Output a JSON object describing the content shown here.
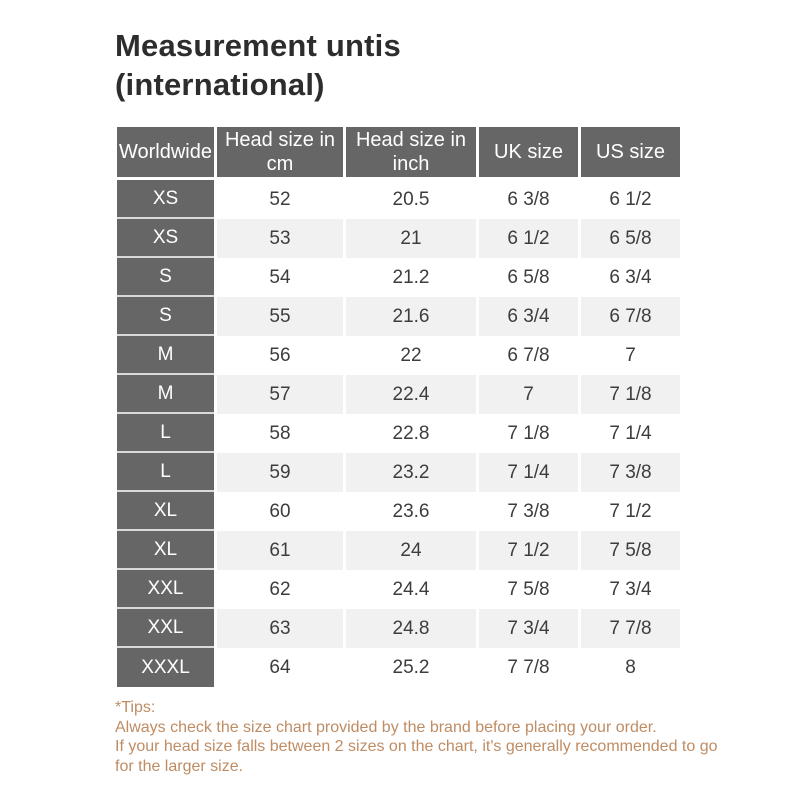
{
  "title": {
    "line1": "Measurement untis",
    "line2": "(international)"
  },
  "table": {
    "headers": [
      "Worldwide",
      "Head size in cm",
      "Head size in inch",
      "UK size",
      "US size"
    ],
    "rows": [
      [
        "XS",
        "52",
        "20.5",
        "6 3/8",
        "6 1/2"
      ],
      [
        "XS",
        "53",
        "21",
        "6 1/2",
        "6 5/8"
      ],
      [
        "S",
        "54",
        "21.2",
        "6 5/8",
        "6 3/4"
      ],
      [
        "S",
        "55",
        "21.6",
        "6 3/4",
        "6 7/8"
      ],
      [
        "M",
        "56",
        "22",
        "6 7/8",
        "7"
      ],
      [
        "M",
        "57",
        "22.4",
        "7",
        "7 1/8"
      ],
      [
        "L",
        "58",
        "22.8",
        "7 1/8",
        "7 1/4"
      ],
      [
        "L",
        "59",
        "23.2",
        "7 1/4",
        "7 3/8"
      ],
      [
        "XL",
        "60",
        "23.6",
        "7 3/8",
        "7 1/2"
      ],
      [
        "XL",
        "61",
        "24",
        "7 1/2",
        "7 5/8"
      ],
      [
        "XXL",
        "62",
        "24.4",
        "7 5/8",
        "7 3/4"
      ],
      [
        "XXL",
        "63",
        "24.8",
        "7 3/4",
        "7 7/8"
      ],
      [
        "XXXL",
        "64",
        "25.2",
        "7 7/8",
        "8"
      ]
    ]
  },
  "tips": {
    "heading": "*Tips:",
    "line1": "Always check the size chart provided by the brand before placing your order.",
    "line2": "If your head size falls between 2 sizes on the chart, it's generally recommended to go for the larger size."
  },
  "colors": {
    "header_bg": "#666666",
    "header_text": "#ffffff",
    "alt_row_bg": "#f1f1f1",
    "body_text": "#3d3d3d",
    "title_text": "#2d2d2d",
    "tips_text": "#bf8c63"
  },
  "chart_data": {
    "type": "table",
    "title": "Measurement untis (international)",
    "columns": [
      "Worldwide",
      "Head size in cm",
      "Head size in inch",
      "UK size",
      "US size"
    ],
    "rows": [
      [
        "XS",
        52,
        20.5,
        "6 3/8",
        "6 1/2"
      ],
      [
        "XS",
        53,
        21,
        "6 1/2",
        "6 5/8"
      ],
      [
        "S",
        54,
        21.2,
        "6 5/8",
        "6 3/4"
      ],
      [
        "S",
        55,
        21.6,
        "6 3/4",
        "6 7/8"
      ],
      [
        "M",
        56,
        22,
        "6 7/8",
        "7"
      ],
      [
        "M",
        57,
        22.4,
        "7",
        "7 1/8"
      ],
      [
        "L",
        58,
        22.8,
        "7 1/8",
        "7 1/4"
      ],
      [
        "L",
        59,
        23.2,
        "7 1/4",
        "7 3/8"
      ],
      [
        "XL",
        60,
        23.6,
        "7 3/8",
        "7 1/2"
      ],
      [
        "XL",
        61,
        24,
        "7 1/2",
        "7 5/8"
      ],
      [
        "XXL",
        62,
        24.4,
        "7 5/8",
        "7 3/4"
      ],
      [
        "XXL",
        63,
        24.8,
        "7 3/4",
        "7 7/8"
      ],
      [
        "XXXL",
        64,
        25.2,
        "7 7/8",
        "8"
      ]
    ],
    "notes": [
      "*Tips:",
      "Always check the size chart provided by the brand before placing your order.",
      "If your head size falls between 2 sizes on the chart, it's generally recommended to go for the larger size."
    ]
  }
}
